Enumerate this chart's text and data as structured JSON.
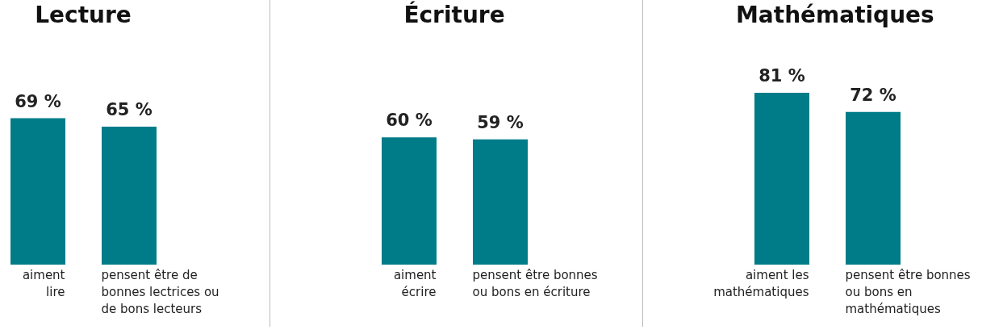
{
  "chart_data": [
    {
      "type": "bar",
      "title": "Lecture",
      "categories": [
        "aiment lire",
        "pensent être de bonnes lectrices ou de bons lecteurs"
      ],
      "values": [
        69,
        65
      ],
      "color": "#007c89",
      "value_labels": [
        "69 %",
        "65 %"
      ]
    },
    {
      "type": "bar",
      "title": "Écriture",
      "categories": [
        "aiment écrire",
        "pensent être bonnes ou bons en écriture"
      ],
      "values": [
        60,
        59
      ],
      "color": "#007c89",
      "value_labels": [
        "60 %",
        "59 %"
      ]
    },
    {
      "type": "bar",
      "title": "Mathématiques",
      "categories": [
        "aiment les mathématiques",
        "pensent être bonnes ou bons en mathématiques"
      ],
      "values": [
        81,
        72
      ],
      "color": "#007c89",
      "value_labels": [
        "81 %",
        "72 %"
      ]
    }
  ]
}
